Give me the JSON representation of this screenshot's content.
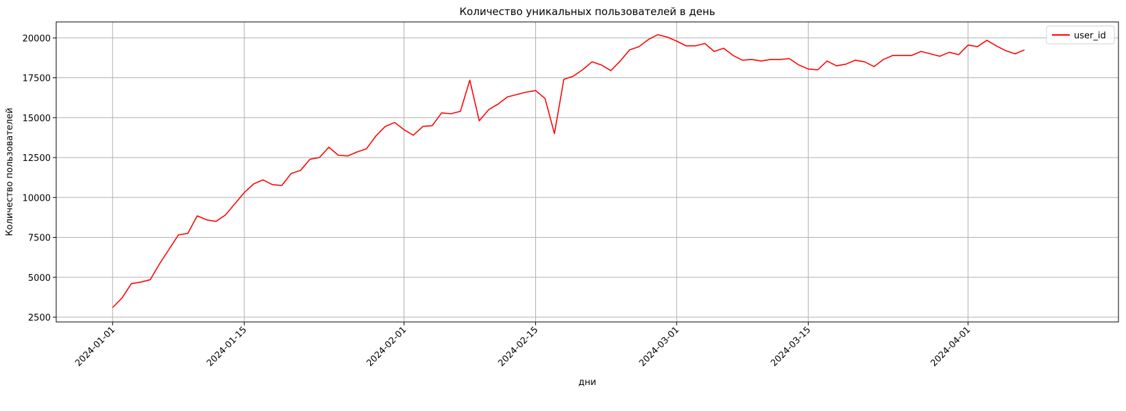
{
  "chart_data": {
    "type": "line",
    "title": "Количество уникальных пользователей в день",
    "xlabel": "дни",
    "ylabel": "Количество пользователей",
    "x_type": "date",
    "xlim": [
      "2023-12-26",
      "2024-04-17"
    ],
    "ylim": [
      2200,
      21000
    ],
    "x_ticks": [
      "2024-01-01",
      "2024-01-15",
      "2024-02-01",
      "2024-02-15",
      "2024-03-01",
      "2024-03-15",
      "2024-04-01"
    ],
    "y_ticks": [
      2500,
      5000,
      7500,
      10000,
      12500,
      15000,
      17500,
      20000
    ],
    "grid": true,
    "legend_position": "top-right",
    "series": [
      {
        "name": "user_id",
        "color": "#ff0000",
        "x_start": "2024-01-01",
        "x_step": "1 day",
        "values": [
          3100,
          3700,
          4600,
          4700,
          4850,
          5850,
          6750,
          7650,
          7750,
          8850,
          8600,
          8500,
          8900,
          9600,
          10300,
          10850,
          11100,
          10800,
          10750,
          11500,
          11700,
          12400,
          12500,
          13150,
          12650,
          12600,
          12850,
          13050,
          13850,
          14450,
          14700,
          14250,
          13900,
          14450,
          14500,
          15300,
          15250,
          15400,
          17350,
          14800,
          15500,
          15850,
          16300,
          16450,
          16600,
          16700,
          16200,
          14000,
          17400,
          17600,
          18000,
          18500,
          18300,
          17950,
          18550,
          19250,
          19450,
          19900,
          20200,
          20050,
          19800,
          19500,
          19500,
          19650,
          19150,
          19350,
          18900,
          18600,
          18650,
          18550,
          18650,
          18650,
          18700,
          18300,
          18050,
          18000,
          18550,
          18250,
          18350,
          18600,
          18500,
          18200,
          18650,
          18900,
          18900,
          18900,
          19150,
          19000,
          18850,
          19100,
          18950,
          19550,
          19450,
          19850,
          19500,
          19200,
          19000,
          19250
        ]
      }
    ]
  }
}
